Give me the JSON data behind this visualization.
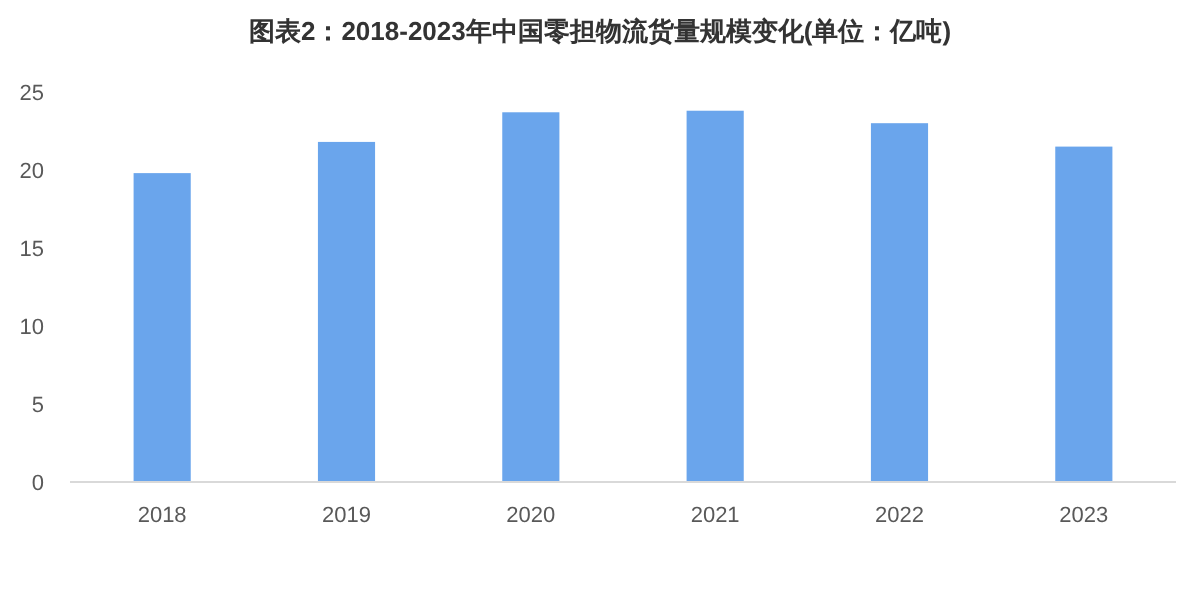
{
  "chart_data": {
    "type": "bar",
    "title": "图表2：2018-2023年中国零担物流货量规模变化(单位：亿吨)",
    "categories": [
      "2018",
      "2019",
      "2020",
      "2021",
      "2022",
      "2023"
    ],
    "values": [
      19.8,
      21.8,
      23.7,
      23.8,
      23.0,
      21.5
    ],
    "color": "#6aa5ec",
    "ylim": [
      0,
      25
    ],
    "yticks": [
      0,
      5,
      10,
      15,
      20,
      25
    ]
  }
}
